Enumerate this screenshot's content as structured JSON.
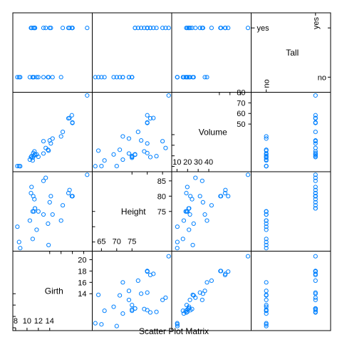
{
  "chart_data": {
    "type": "scatter",
    "subtype": "scatterplot-matrix",
    "title": "Scatter Plot Matrix",
    "variables": [
      {
        "name": "Girth",
        "kind": "numeric",
        "lim": [
          7.5,
          21.5
        ],
        "ticks_low": [
          8,
          10,
          12,
          14
        ],
        "ticks_high": [
          14,
          16,
          18,
          20
        ]
      },
      {
        "name": "Height",
        "kind": "numeric",
        "lim": [
          62,
          88
        ],
        "ticks_low": [
          65,
          70,
          75
        ],
        "ticks_high": [
          75,
          80,
          85
        ]
      },
      {
        "name": "Volume",
        "kind": "numeric",
        "lim": [
          5,
          80
        ],
        "ticks_low": [
          10,
          20,
          30,
          40
        ],
        "ticks_high": [
          50,
          60,
          70,
          80
        ]
      },
      {
        "name": "Tall",
        "kind": "factor",
        "levels": [
          "no",
          "yes"
        ]
      }
    ],
    "observations": [
      {
        "Girth": 8.3,
        "Height": 70,
        "Volume": 10.3,
        "Tall": "no"
      },
      {
        "Girth": 8.6,
        "Height": 65,
        "Volume": 10.3,
        "Tall": "no"
      },
      {
        "Girth": 8.8,
        "Height": 63,
        "Volume": 10.2,
        "Tall": "no"
      },
      {
        "Girth": 10.5,
        "Height": 72,
        "Volume": 16.4,
        "Tall": "no"
      },
      {
        "Girth": 10.7,
        "Height": 81,
        "Volume": 18.8,
        "Tall": "yes"
      },
      {
        "Girth": 10.8,
        "Height": 83,
        "Volume": 19.7,
        "Tall": "yes"
      },
      {
        "Girth": 11.0,
        "Height": 66,
        "Volume": 15.6,
        "Tall": "no"
      },
      {
        "Girth": 11.0,
        "Height": 75,
        "Volume": 18.2,
        "Tall": "no"
      },
      {
        "Girth": 11.1,
        "Height": 80,
        "Volume": 22.6,
        "Tall": "yes"
      },
      {
        "Girth": 11.2,
        "Height": 75,
        "Volume": 19.9,
        "Tall": "no"
      },
      {
        "Girth": 11.3,
        "Height": 79,
        "Volume": 24.2,
        "Tall": "yes"
      },
      {
        "Girth": 11.4,
        "Height": 76,
        "Volume": 21.0,
        "Tall": "yes"
      },
      {
        "Girth": 11.4,
        "Height": 76,
        "Volume": 21.4,
        "Tall": "yes"
      },
      {
        "Girth": 11.7,
        "Height": 69,
        "Volume": 21.3,
        "Tall": "no"
      },
      {
        "Girth": 12.0,
        "Height": 75,
        "Volume": 19.1,
        "Tall": "no"
      },
      {
        "Girth": 12.9,
        "Height": 74,
        "Volume": 22.2,
        "Tall": "no"
      },
      {
        "Girth": 12.9,
        "Height": 85,
        "Volume": 33.8,
        "Tall": "yes"
      },
      {
        "Girth": 13.3,
        "Height": 86,
        "Volume": 27.4,
        "Tall": "yes"
      },
      {
        "Girth": 13.7,
        "Height": 71,
        "Volume": 25.7,
        "Tall": "no"
      },
      {
        "Girth": 13.8,
        "Height": 64,
        "Volume": 24.9,
        "Tall": "no"
      },
      {
        "Girth": 14.0,
        "Height": 78,
        "Volume": 34.5,
        "Tall": "yes"
      },
      {
        "Girth": 14.2,
        "Height": 80,
        "Volume": 31.7,
        "Tall": "yes"
      },
      {
        "Girth": 14.5,
        "Height": 74,
        "Volume": 36.3,
        "Tall": "no"
      },
      {
        "Girth": 16.0,
        "Height": 72,
        "Volume": 38.3,
        "Tall": "no"
      },
      {
        "Girth": 16.3,
        "Height": 77,
        "Volume": 42.6,
        "Tall": "yes"
      },
      {
        "Girth": 17.3,
        "Height": 81,
        "Volume": 55.4,
        "Tall": "yes"
      },
      {
        "Girth": 17.5,
        "Height": 82,
        "Volume": 55.7,
        "Tall": "yes"
      },
      {
        "Girth": 17.9,
        "Height": 80,
        "Volume": 58.3,
        "Tall": "yes"
      },
      {
        "Girth": 18.0,
        "Height": 80,
        "Volume": 51.5,
        "Tall": "yes"
      },
      {
        "Girth": 18.0,
        "Height": 80,
        "Volume": 51.0,
        "Tall": "yes"
      },
      {
        "Girth": 20.6,
        "Height": 87,
        "Volume": 77.0,
        "Tall": "yes"
      }
    ],
    "grid": false,
    "legend": "none",
    "point_color": "#0080ff"
  }
}
